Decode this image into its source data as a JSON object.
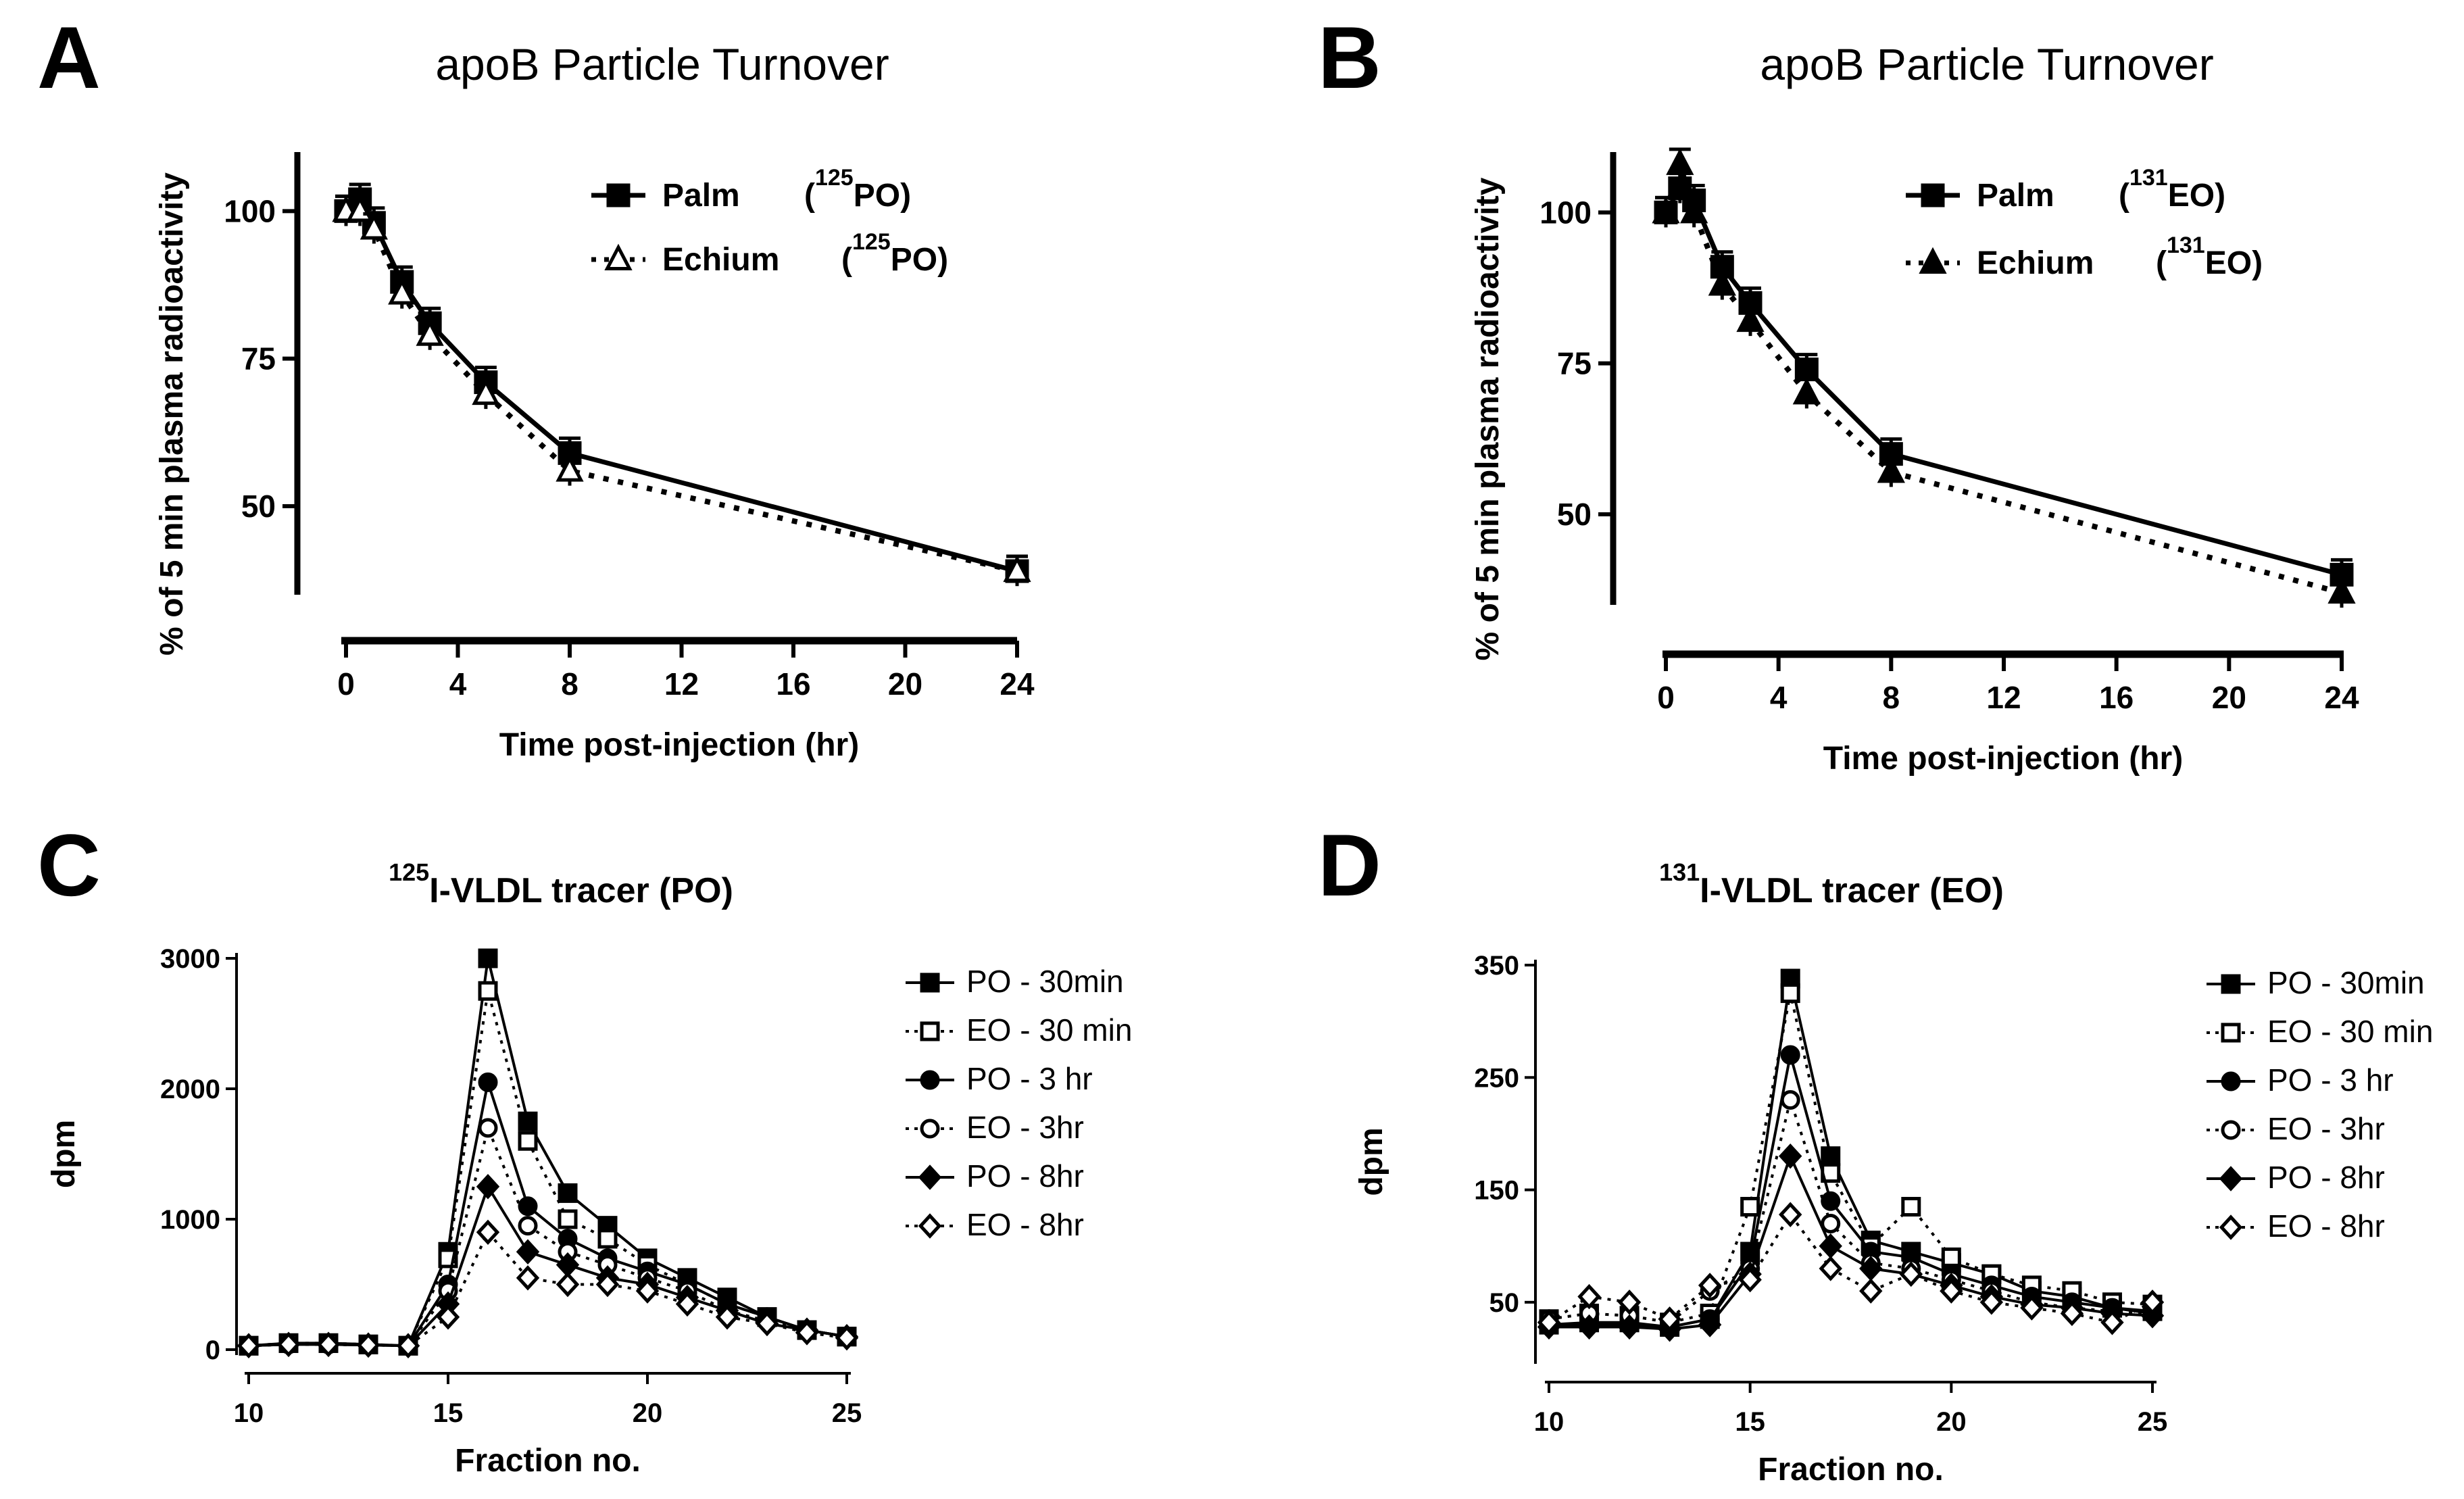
{
  "chart_data": [
    {
      "panel": "A",
      "type": "line",
      "title": "apoB Particle Turnover",
      "xlabel": "Time post-injection (hr)",
      "ylabel": "% of 5 min plasma radioactivity",
      "xlim": [
        0,
        24
      ],
      "ylim": [
        35,
        110
      ],
      "xticks": [
        0,
        4,
        8,
        12,
        16,
        20,
        24
      ],
      "yticks": [
        50,
        75,
        100
      ],
      "legend_position": "top-right",
      "series": [
        {
          "name": "Palm",
          "tag": "(125PO)",
          "tag_pre": "(",
          "tag_sup": "125",
          "tag_post": "PO)",
          "marker": "square-filled",
          "dash": "solid",
          "x": [
            0,
            0.5,
            1,
            2,
            3,
            5,
            8,
            24
          ],
          "y": [
            100,
            102,
            98,
            88,
            81,
            71,
            59,
            39
          ]
        },
        {
          "name": "Echium",
          "tag": "(125PO)",
          "tag_pre": "(",
          "tag_sup": "125",
          "tag_post": "PO)",
          "marker": "triangle-open",
          "dash": "dotted",
          "x": [
            0,
            0.5,
            1,
            2,
            3,
            5,
            8,
            24
          ],
          "y": [
            100,
            100,
            97,
            86,
            79,
            69,
            56,
            39
          ]
        }
      ]
    },
    {
      "panel": "B",
      "type": "line",
      "title": "apoB Particle Turnover",
      "xlabel": "Time post-injection (hr)",
      "ylabel": "% of 5 min plasma radioactivity",
      "xlim": [
        0,
        24
      ],
      "ylim": [
        35,
        110
      ],
      "xticks": [
        0,
        4,
        8,
        12,
        16,
        20,
        24
      ],
      "yticks": [
        50,
        75,
        100
      ],
      "legend_position": "top-right",
      "series": [
        {
          "name": "Palm",
          "tag": "(131EO)",
          "tag_pre": "(",
          "tag_sup": "131",
          "tag_post": "EO)",
          "marker": "square-filled",
          "dash": "solid",
          "x": [
            0,
            0.5,
            1,
            2,
            3,
            5,
            8,
            24
          ],
          "y": [
            100,
            104,
            102,
            91,
            85,
            74,
            60,
            40
          ]
        },
        {
          "name": "Echium",
          "tag": "(131EO)",
          "tag_pre": "(",
          "tag_sup": "131",
          "tag_post": "EO)",
          "marker": "triangle-filled",
          "dash": "dotted",
          "x": [
            0,
            0.5,
            1,
            2,
            3,
            5,
            8,
            24
          ],
          "y": [
            100,
            108,
            100,
            88,
            82,
            70,
            57,
            37
          ]
        }
      ]
    },
    {
      "panel": "C",
      "type": "line",
      "title": "125I-VLDL tracer (PO)",
      "title_sup": "125",
      "title_rest": "I-VLDL tracer (PO)",
      "xlabel": "Fraction no.",
      "ylabel": "dpm",
      "xlim": [
        10,
        25
      ],
      "ylim": [
        0,
        3000
      ],
      "xticks": [
        10,
        15,
        20,
        25
      ],
      "yticks": [
        0,
        1000,
        2000,
        3000
      ],
      "legend_position": "right",
      "x": [
        10,
        11,
        12,
        13,
        14,
        15,
        16,
        17,
        18,
        19,
        20,
        21,
        22,
        23,
        24,
        25
      ],
      "series": [
        {
          "name": "PO - 30min",
          "marker": "square-filled",
          "dash": "solid",
          "values": [
            30,
            50,
            50,
            40,
            30,
            750,
            3000,
            1750,
            1200,
            950,
            700,
            550,
            400,
            250,
            150,
            100
          ]
        },
        {
          "name": "EO - 30 min",
          "marker": "square-open",
          "dash": "dotted",
          "values": [
            30,
            50,
            50,
            40,
            30,
            700,
            2750,
            1600,
            1000,
            850,
            650,
            500,
            350,
            250,
            150,
            100
          ]
        },
        {
          "name": "PO - 3 hr",
          "marker": "circle-filled",
          "dash": "solid",
          "values": [
            30,
            40,
            40,
            35,
            30,
            500,
            2050,
            1100,
            850,
            700,
            600,
            500,
            350,
            250,
            150,
            100
          ]
        },
        {
          "name": "EO - 3hr",
          "marker": "circle-open",
          "dash": "dotted",
          "values": [
            30,
            40,
            40,
            35,
            30,
            450,
            1700,
            950,
            750,
            650,
            550,
            450,
            300,
            220,
            150,
            100
          ]
        },
        {
          "name": "PO - 8hr",
          "marker": "diamond-filled",
          "dash": "solid",
          "values": [
            30,
            40,
            40,
            35,
            30,
            350,
            1250,
            750,
            650,
            550,
            500,
            400,
            300,
            200,
            150,
            100
          ]
        },
        {
          "name": "EO - 8hr",
          "marker": "diamond-open",
          "dash": "dotted",
          "values": [
            30,
            40,
            40,
            35,
            30,
            250,
            900,
            550,
            500,
            500,
            450,
            350,
            250,
            200,
            130,
            90
          ]
        }
      ]
    },
    {
      "panel": "D",
      "type": "line",
      "title": "131I-VLDL tracer (EO)",
      "title_sup": "131",
      "title_rest": "I-VLDL tracer (EO)",
      "xlabel": "Fraction no.",
      "ylabel": "dpm",
      "xlim": [
        10,
        25
      ],
      "ylim": [
        0,
        350
      ],
      "xticks": [
        10,
        15,
        20,
        25
      ],
      "yticks": [
        50,
        150,
        250,
        350
      ],
      "legend_position": "right",
      "x": [
        10,
        11,
        12,
        13,
        14,
        15,
        16,
        17,
        18,
        19,
        20,
        21,
        22,
        23,
        24,
        25
      ],
      "series": [
        {
          "name": "PO - 30min",
          "marker": "square-filled",
          "dash": "solid",
          "values": [
            30,
            32,
            32,
            28,
            35,
            95,
            338,
            180,
            105,
            95,
            85,
            75,
            60,
            55,
            45,
            42
          ]
        },
        {
          "name": "EO - 30 min",
          "marker": "square-open",
          "dash": "dotted",
          "values": [
            35,
            40,
            38,
            32,
            40,
            135,
            325,
            165,
            100,
            135,
            90,
            75,
            65,
            60,
            50,
            48
          ]
        },
        {
          "name": "PO - 3 hr",
          "marker": "circle-filled",
          "dash": "solid",
          "values": [
            30,
            30,
            30,
            28,
            35,
            85,
            270,
            140,
            95,
            90,
            75,
            65,
            55,
            50,
            45,
            40
          ]
        },
        {
          "name": "EO - 3hr",
          "marker": "circle-open",
          "dash": "dotted",
          "values": [
            35,
            40,
            38,
            32,
            60,
            80,
            230,
            120,
            85,
            80,
            70,
            60,
            50,
            45,
            42,
            40
          ]
        },
        {
          "name": "PO - 8hr",
          "marker": "diamond-filled",
          "dash": "solid",
          "values": [
            28,
            28,
            28,
            26,
            30,
            75,
            180,
            100,
            80,
            75,
            65,
            55,
            48,
            45,
            40,
            38
          ]
        },
        {
          "name": "EO - 8hr",
          "marker": "diamond-open",
          "dash": "dotted",
          "values": [
            32,
            55,
            50,
            35,
            65,
            70,
            128,
            80,
            60,
            75,
            60,
            50,
            45,
            40,
            32,
            50
          ]
        }
      ]
    }
  ]
}
